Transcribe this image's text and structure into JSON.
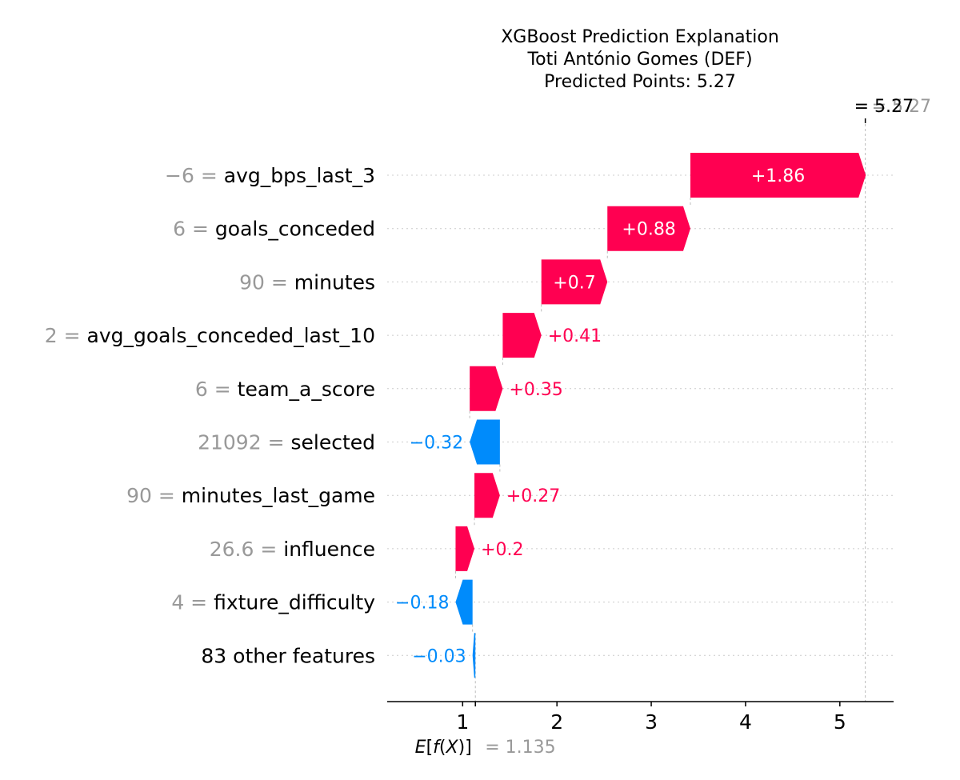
{
  "chart_data": {
    "type": "waterfall",
    "title_lines": [
      "XGBoost Prediction Explanation",
      "Toti António Gomes (DEF)",
      "Predicted Points: 5.27"
    ],
    "base_value": 1.135,
    "base_label": "1.135",
    "prediction": 5.27,
    "top_label_fx": "5.27",
    "top_label_gray": "5.27",
    "xlim": [
      0.2,
      5.57
    ],
    "xticks": [
      1,
      2,
      3,
      4,
      5
    ],
    "features": [
      {
        "value_text": "−6",
        "name": "avg_bps_last_3",
        "contribution": 1.86,
        "label": "+1.86"
      },
      {
        "value_text": "6",
        "name": "goals_conceded",
        "contribution": 0.88,
        "label": "+0.88"
      },
      {
        "value_text": "90",
        "name": "minutes",
        "contribution": 0.7,
        "label": "+0.7"
      },
      {
        "value_text": "2",
        "name": "avg_goals_conceded_last_10",
        "contribution": 0.41,
        "label": "+0.41"
      },
      {
        "value_text": "6",
        "name": "team_a_score",
        "contribution": 0.35,
        "label": "+0.35"
      },
      {
        "value_text": "21092",
        "name": "selected",
        "contribution": -0.32,
        "label": "−0.32"
      },
      {
        "value_text": "90",
        "name": "minutes_last_game",
        "contribution": 0.27,
        "label": "+0.27"
      },
      {
        "value_text": "26.6",
        "name": "influence",
        "contribution": 0.2,
        "label": "+0.2"
      },
      {
        "value_text": "4",
        "name": "fixture_difficulty",
        "contribution": -0.18,
        "label": "−0.18"
      },
      {
        "value_text": "",
        "name": "83 other features",
        "contribution": -0.03,
        "label": "−0.03"
      }
    ],
    "colors": {
      "positive": "#ff0051",
      "negative": "#008bfb",
      "muted": "#999999"
    }
  }
}
